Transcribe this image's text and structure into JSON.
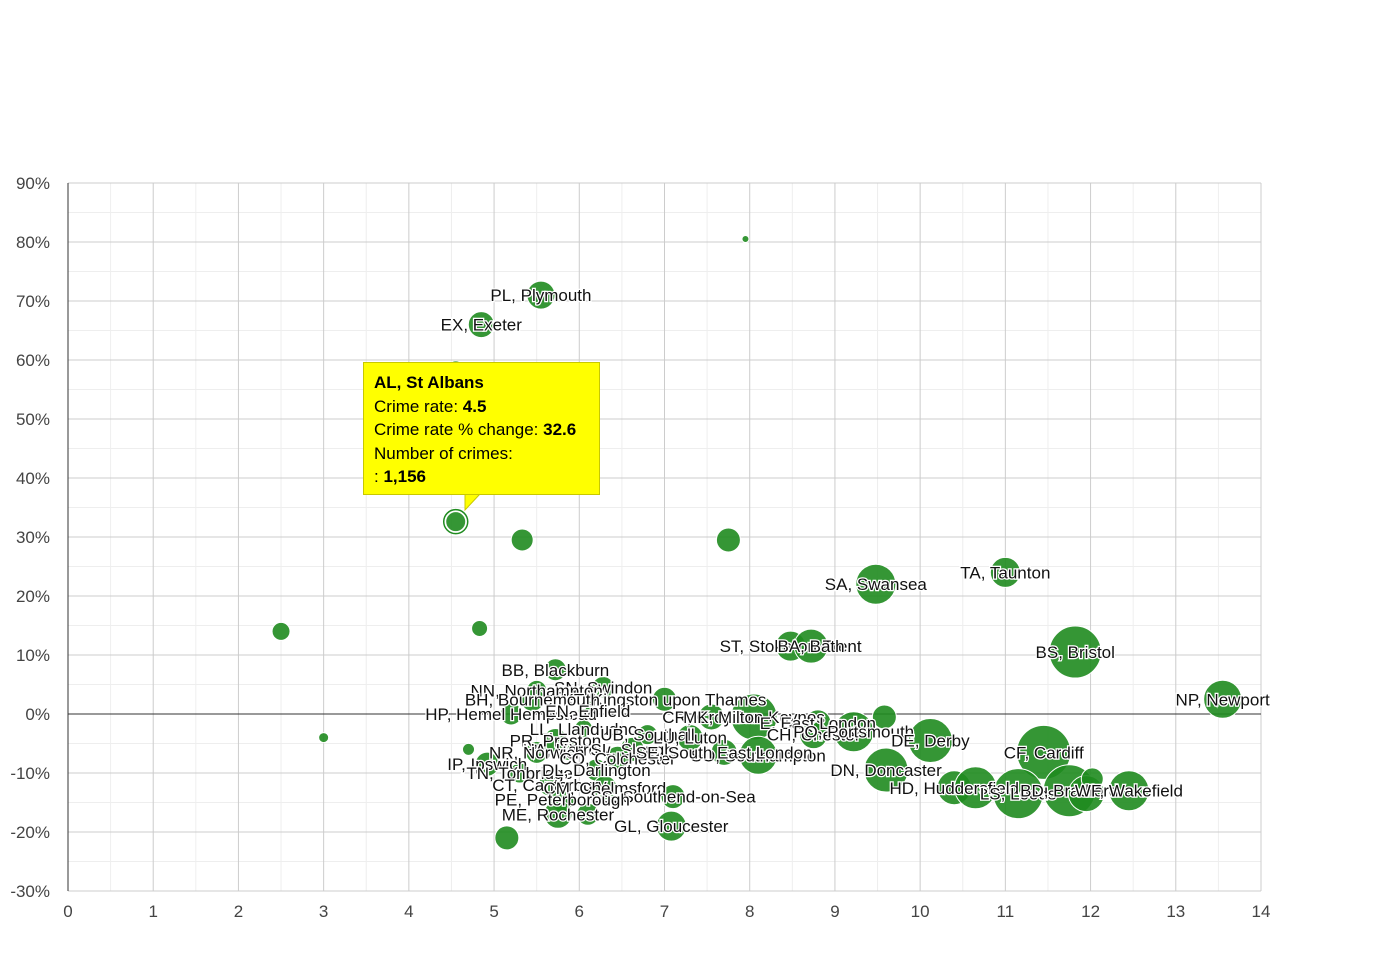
{
  "chart_data": {
    "type": "scatter",
    "title": "",
    "xlabel": "",
    "ylabel": "",
    "xlim": [
      0,
      14
    ],
    "ylim": [
      -30,
      90
    ],
    "x_ticks": [
      "0",
      "1",
      "2",
      "3",
      "4",
      "5",
      "6",
      "7",
      "8",
      "9",
      "10",
      "11",
      "12",
      "13",
      "14"
    ],
    "y_ticks": [
      "-30%",
      "-20%",
      "-10%",
      "0%",
      "10%",
      "20%",
      "30%",
      "40%",
      "50%",
      "60%",
      "70%",
      "80%",
      "90%"
    ],
    "grid": true,
    "bubble_color": "#1f8b1f",
    "points": [
      {
        "label": "PL, Plymouth",
        "x": 5.55,
        "y": 71,
        "size": 1.4
      },
      {
        "label": "EX, Exeter",
        "x": 4.85,
        "y": 66,
        "size": 1.3
      },
      {
        "label": "",
        "x": 7.95,
        "y": 80.5,
        "size": 0.3
      },
      {
        "label": "",
        "x": 4.55,
        "y": 58.5,
        "size": 0.8
      },
      {
        "label": "",
        "x": 4.55,
        "y": 32.6,
        "size": 1.0
      },
      {
        "label": "",
        "x": 5.33,
        "y": 29.5,
        "size": 1.1
      },
      {
        "label": "",
        "x": 7.75,
        "y": 29.5,
        "size": 1.2
      },
      {
        "label": "SA, Swansea",
        "x": 9.48,
        "y": 22,
        "size": 2.0
      },
      {
        "label": "TA, Taunton",
        "x": 11.0,
        "y": 24,
        "size": 1.5
      },
      {
        "label": "",
        "x": 2.5,
        "y": 14,
        "size": 0.9
      },
      {
        "label": "",
        "x": 4.83,
        "y": 14.5,
        "size": 0.8
      },
      {
        "label": "ST, Stoke-on-Trent",
        "x": 8.48,
        "y": 11.5,
        "size": 1.5
      },
      {
        "label": "BA, Bath",
        "x": 8.72,
        "y": 11.5,
        "size": 1.7
      },
      {
        "label": "BS, Bristol",
        "x": 11.82,
        "y": 10.5,
        "size": 2.6
      },
      {
        "label": "NP, Newport",
        "x": 13.55,
        "y": 2.5,
        "size": 1.9
      },
      {
        "label": "",
        "x": 3.0,
        "y": -4,
        "size": 0.5
      },
      {
        "label": "",
        "x": 4.7,
        "y": -6,
        "size": 0.6
      },
      {
        "label": "BB, Blackburn",
        "x": 5.72,
        "y": 7.5,
        "size": 1.1
      },
      {
        "label": "SN, Swindon",
        "x": 6.28,
        "y": 4.5,
        "size": 1.1
      },
      {
        "label": "NN, Northampton",
        "x": 5.5,
        "y": 4,
        "size": 1.0
      },
      {
        "label": "KT, Kingston upon Thames",
        "x": 7.0,
        "y": 2.5,
        "size": 1.2
      },
      {
        "label": "BH, Bournemouth",
        "x": 5.45,
        "y": 2.5,
        "size": 1.2
      },
      {
        "label": "HP, Hemel Hempstead",
        "x": 5.2,
        "y": 0,
        "size": 1.1
      },
      {
        "label": "EN, Enfield",
        "x": 6.1,
        "y": 0.5,
        "size": 1.0
      },
      {
        "label": "CR, Croydon",
        "x": 7.55,
        "y": -0.5,
        "size": 1.3
      },
      {
        "label": "MK, Milton Keynes",
        "x": 8.05,
        "y": -0.5,
        "size": 2.3
      },
      {
        "label": "E, East London",
        "x": 8.8,
        "y": -1.5,
        "size": 1.3
      },
      {
        "label": "",
        "x": 9.58,
        "y": -0.5,
        "size": 1.2
      },
      {
        "label": "LL, Llandudno",
        "x": 6.05,
        "y": -2.5,
        "size": 0.9
      },
      {
        "label": "UB, Southall",
        "x": 6.8,
        "y": -3.5,
        "size": 1.0
      },
      {
        "label": "LU, Luton",
        "x": 7.3,
        "y": -4,
        "size": 1.3
      },
      {
        "label": "CH, Chester",
        "x": 8.75,
        "y": -3.5,
        "size": 1.4
      },
      {
        "label": "PO, Portsmouth",
        "x": 9.22,
        "y": -3,
        "size": 2.0
      },
      {
        "label": "DE, Derby",
        "x": 10.12,
        "y": -4.5,
        "size": 2.2
      },
      {
        "label": "PR, Preston",
        "x": 5.72,
        "y": -4.5,
        "size": 1.2
      },
      {
        "label": "HA, Harrow",
        "x": 5.85,
        "y": -6,
        "size": 1.1
      },
      {
        "label": "SL, Slough",
        "x": 6.62,
        "y": -6,
        "size": 1.2
      },
      {
        "label": "SO, Southampton",
        "x": 8.1,
        "y": -7,
        "size": 1.9
      },
      {
        "label": "NR, Norwich",
        "x": 5.5,
        "y": -6.5,
        "size": 1.1
      },
      {
        "label": "CO, Colchester",
        "x": 6.45,
        "y": -7.5,
        "size": 1.2
      },
      {
        "label": "SE, South East London",
        "x": 7.7,
        "y": -6.5,
        "size": 1.3
      },
      {
        "label": "CF, Cardiff",
        "x": 11.45,
        "y": -6.5,
        "size": 2.7
      },
      {
        "label": "IP, Ipswich",
        "x": 4.92,
        "y": -8.5,
        "size": 1.2
      },
      {
        "label": "TN, Tonbridge",
        "x": 5.3,
        "y": -10,
        "size": 1.0
      },
      {
        "label": "DL, Darlington",
        "x": 6.2,
        "y": -9.5,
        "size": 1.1
      },
      {
        "label": "DN, Doncaster",
        "x": 9.6,
        "y": -9.5,
        "size": 2.2
      },
      {
        "label": "CT, Canterbury",
        "x": 5.65,
        "y": -12,
        "size": 1.1
      },
      {
        "label": "CM, Chelmsford",
        "x": 6.3,
        "y": -12.5,
        "size": 1.2
      },
      {
        "label": "HD, Huddersfield",
        "x": 10.4,
        "y": -12.5,
        "size": 1.7
      },
      {
        "label": "",
        "x": 10.65,
        "y": -12.5,
        "size": 2.1
      },
      {
        "label": "LS, Leeds",
        "x": 11.15,
        "y": -13.5,
        "size": 2.5
      },
      {
        "label": "BD, Bradford",
        "x": 11.75,
        "y": -13,
        "size": 2.6
      },
      {
        "label": "WF, Wakefield",
        "x": 12.45,
        "y": -13,
        "size": 2.0
      },
      {
        "label": "",
        "x": 11.95,
        "y": -13.5,
        "size": 1.8
      },
      {
        "label": "",
        "x": 12.02,
        "y": -11,
        "size": 1.1
      },
      {
        "label": "SS, Southend-on-Sea",
        "x": 7.1,
        "y": -14,
        "size": 1.2
      },
      {
        "label": "PE, Peterborough",
        "x": 5.8,
        "y": -14.5,
        "size": 1.2
      },
      {
        "label": "ME, Rochester",
        "x": 5.75,
        "y": -17,
        "size": 1.4
      },
      {
        "label": "",
        "x": 6.1,
        "y": -17,
        "size": 1.1
      },
      {
        "label": "GL, Gloucester",
        "x": 7.08,
        "y": -19,
        "size": 1.5
      },
      {
        "label": "",
        "x": 5.15,
        "y": -21,
        "size": 1.2
      }
    ],
    "tooltip": {
      "title": "AL, St Albans",
      "rate_label": "Crime rate: ",
      "rate_value": "4.5",
      "change_label": "Crime rate % change: ",
      "change_value": "32.6",
      "count_label": "Number of crimes:",
      "count_prefix": ": ",
      "count_value": "1,156"
    }
  }
}
